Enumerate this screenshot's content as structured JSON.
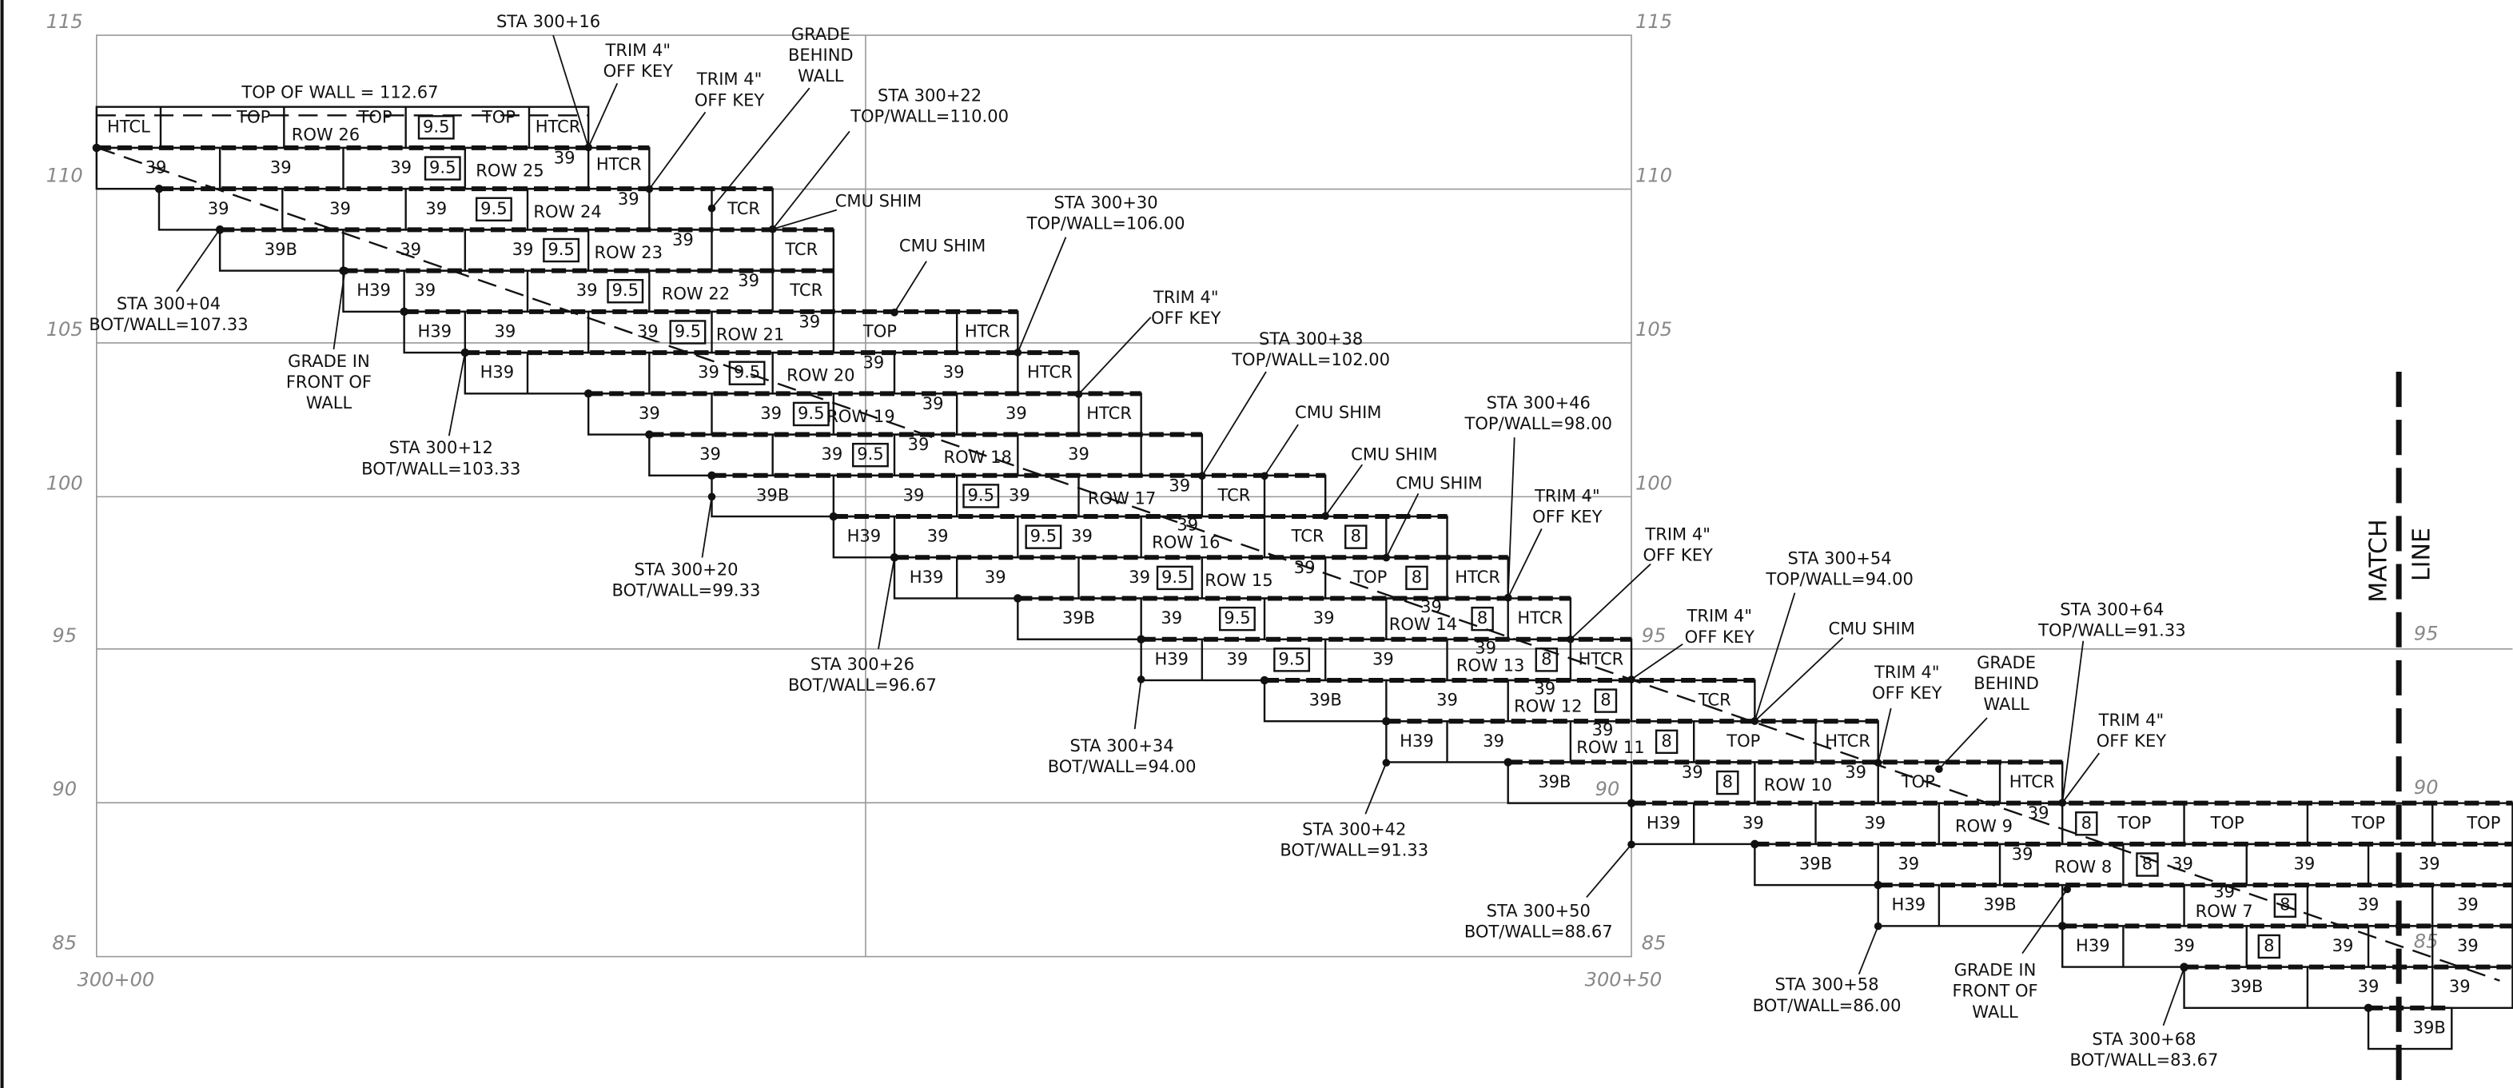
{
  "grid": {
    "left_elevations": [
      "115",
      "110",
      "105",
      "100",
      "95",
      "90",
      "85"
    ],
    "right_elevations": [
      "115",
      "110",
      "105",
      "100",
      "95",
      "90",
      "85"
    ],
    "match_elevations": [
      "95",
      "90",
      "85"
    ],
    "stations": [
      "300+00",
      "300+50"
    ]
  },
  "top_of_wall": "TOP OF WALL = 112.67",
  "match_line": [
    "MATCH",
    "LINE"
  ],
  "annotations": [
    {
      "lines": [
        "STA 300+16"
      ]
    },
    {
      "lines": [
        "TRIM 4\"",
        "OFF KEY"
      ]
    },
    {
      "lines": [
        "GRADE",
        "BEHIND",
        "WALL"
      ]
    },
    {
      "lines": [
        "TRIM 4\"",
        "OFF KEY"
      ]
    },
    {
      "lines": [
        "STA 300+22",
        "TOP/WALL=110.00"
      ]
    },
    {
      "lines": [
        "CMU SHIM"
      ]
    },
    {
      "lines": [
        "CMU SHIM"
      ]
    },
    {
      "lines": [
        "STA 300+04",
        "BOT/WALL=107.33"
      ]
    },
    {
      "lines": [
        "GRADE IN",
        "FRONT OF",
        "WALL"
      ]
    },
    {
      "lines": [
        "STA 300+12",
        "BOT/WALL=103.33"
      ]
    },
    {
      "lines": [
        "STA 300+30",
        "TOP/WALL=106.00"
      ]
    },
    {
      "lines": [
        "TRIM 4\"",
        "OFF KEY"
      ]
    },
    {
      "lines": [
        "STA 300+38",
        "TOP/WALL=102.00"
      ]
    },
    {
      "lines": [
        "CMU SHIM"
      ]
    },
    {
      "lines": [
        "CMU SHIM"
      ]
    },
    {
      "lines": [
        "CMU SHIM"
      ]
    },
    {
      "lines": [
        "STA 300+46",
        "TOP/WALL=98.00"
      ]
    },
    {
      "lines": [
        "TRIM 4\"",
        "OFF KEY"
      ]
    },
    {
      "lines": [
        "TRIM 4\"",
        "OFF KEY"
      ]
    },
    {
      "lines": [
        "STA 300+20",
        "BOT/WALL=99.33"
      ]
    },
    {
      "lines": [
        "STA 300+26",
        "BOT/WALL=96.67"
      ]
    },
    {
      "lines": [
        "TRIM 4\"",
        "OFF KEY"
      ]
    },
    {
      "lines": [
        "STA 300+54",
        "TOP/WALL=94.00"
      ]
    },
    {
      "lines": [
        "CMU SHIM"
      ]
    },
    {
      "lines": [
        "TRIM 4\"",
        "OFF KEY"
      ]
    },
    {
      "lines": [
        "GRADE",
        "BEHIND",
        "WALL"
      ]
    },
    {
      "lines": [
        "STA 300+64",
        "TOP/WALL=91.33"
      ]
    },
    {
      "lines": [
        "TRIM 4\"",
        "OFF KEY"
      ]
    },
    {
      "lines": [
        "STA 300+34",
        "BOT/WALL=94.00"
      ]
    },
    {
      "lines": [
        "STA 300+42",
        "BOT/WALL=91.33"
      ]
    },
    {
      "lines": [
        "STA 300+50",
        "BOT/WALL=88.67"
      ]
    },
    {
      "lines": [
        "STA 300+58",
        "BOT/WALL=86.00"
      ]
    },
    {
      "lines": [
        "GRADE IN",
        "FRONT OF",
        "WALL"
      ]
    },
    {
      "lines": [
        "STA 300+68",
        "BOT/WALL=83.67"
      ]
    }
  ],
  "courses": [
    {
      "labels": [
        "HTCL",
        "TOP",
        "TOP",
        "9.5",
        "TOP",
        "HTCR",
        "ROW 26"
      ]
    },
    {
      "labels": [
        "39",
        "39",
        "39",
        "9.5",
        "ROW 25",
        "39",
        "HTCR"
      ]
    },
    {
      "labels": [
        "39",
        "39",
        "39",
        "9.5",
        "ROW 24",
        "39",
        "TCR"
      ]
    },
    {
      "labels": [
        "39B",
        "39",
        "39",
        "9.5",
        "ROW 23",
        "39",
        "TCR"
      ]
    },
    {
      "labels": [
        "H39",
        "39",
        "39",
        "9.5",
        "ROW 22",
        "39",
        "TCR"
      ]
    },
    {
      "labels": [
        "H39",
        "39",
        "39",
        "9.5",
        "ROW 21",
        "39",
        "TOP",
        "HTCR"
      ]
    },
    {
      "labels": [
        "H39",
        "39",
        "9.5",
        "ROW 20",
        "39",
        "39",
        "HTCR"
      ]
    },
    {
      "labels": [
        "39",
        "39",
        "9.5",
        "ROW 19",
        "39",
        "39",
        "HTCR"
      ]
    },
    {
      "labels": [
        "39",
        "39",
        "9.5",
        "39",
        "ROW 18",
        "39"
      ]
    },
    {
      "labels": [
        "39B",
        "39",
        "9.5",
        "39",
        "ROW 17",
        "39",
        "TCR"
      ]
    },
    {
      "labels": [
        "H39",
        "39",
        "9.5",
        "39",
        "39",
        "ROW 16",
        "TCR",
        "8"
      ]
    },
    {
      "labels": [
        "H39",
        "39",
        "39",
        "9.5",
        "ROW 15",
        "39",
        "TOP",
        "8",
        "HTCR"
      ]
    },
    {
      "labels": [
        "39B",
        "39",
        "9.5",
        "39",
        "39",
        "ROW 14",
        "8",
        "HTCR"
      ]
    },
    {
      "labels": [
        "H39",
        "39",
        "9.5",
        "39",
        "39",
        "ROW 13",
        "8",
        "HTCR"
      ]
    },
    {
      "labels": [
        "39B",
        "39",
        "39",
        "ROW 12",
        "8",
        "TCR"
      ]
    },
    {
      "labels": [
        "H39",
        "39",
        "39",
        "ROW 11",
        "8",
        "TOP",
        "HTCR"
      ]
    },
    {
      "labels": [
        "39B",
        "39",
        "8",
        "ROW 10",
        "39",
        "TOP",
        "HTCR"
      ]
    },
    {
      "labels": [
        "H39",
        "39",
        "39",
        "ROW 9",
        "39",
        "8",
        "TOP",
        "TOP",
        "TOP",
        "TOP"
      ]
    },
    {
      "labels": [
        "39B",
        "39",
        "39",
        "ROW 8",
        "8",
        "39",
        "39",
        "39"
      ]
    },
    {
      "labels": [
        "H39",
        "39B",
        "39",
        "ROW 7",
        "8",
        "39",
        "39"
      ]
    },
    {
      "labels": [
        "H39",
        "39",
        "8",
        "39",
        "39"
      ]
    },
    {
      "labels": [
        "39B",
        "39",
        "39"
      ]
    },
    {
      "labels": [
        "39B"
      ]
    }
  ]
}
